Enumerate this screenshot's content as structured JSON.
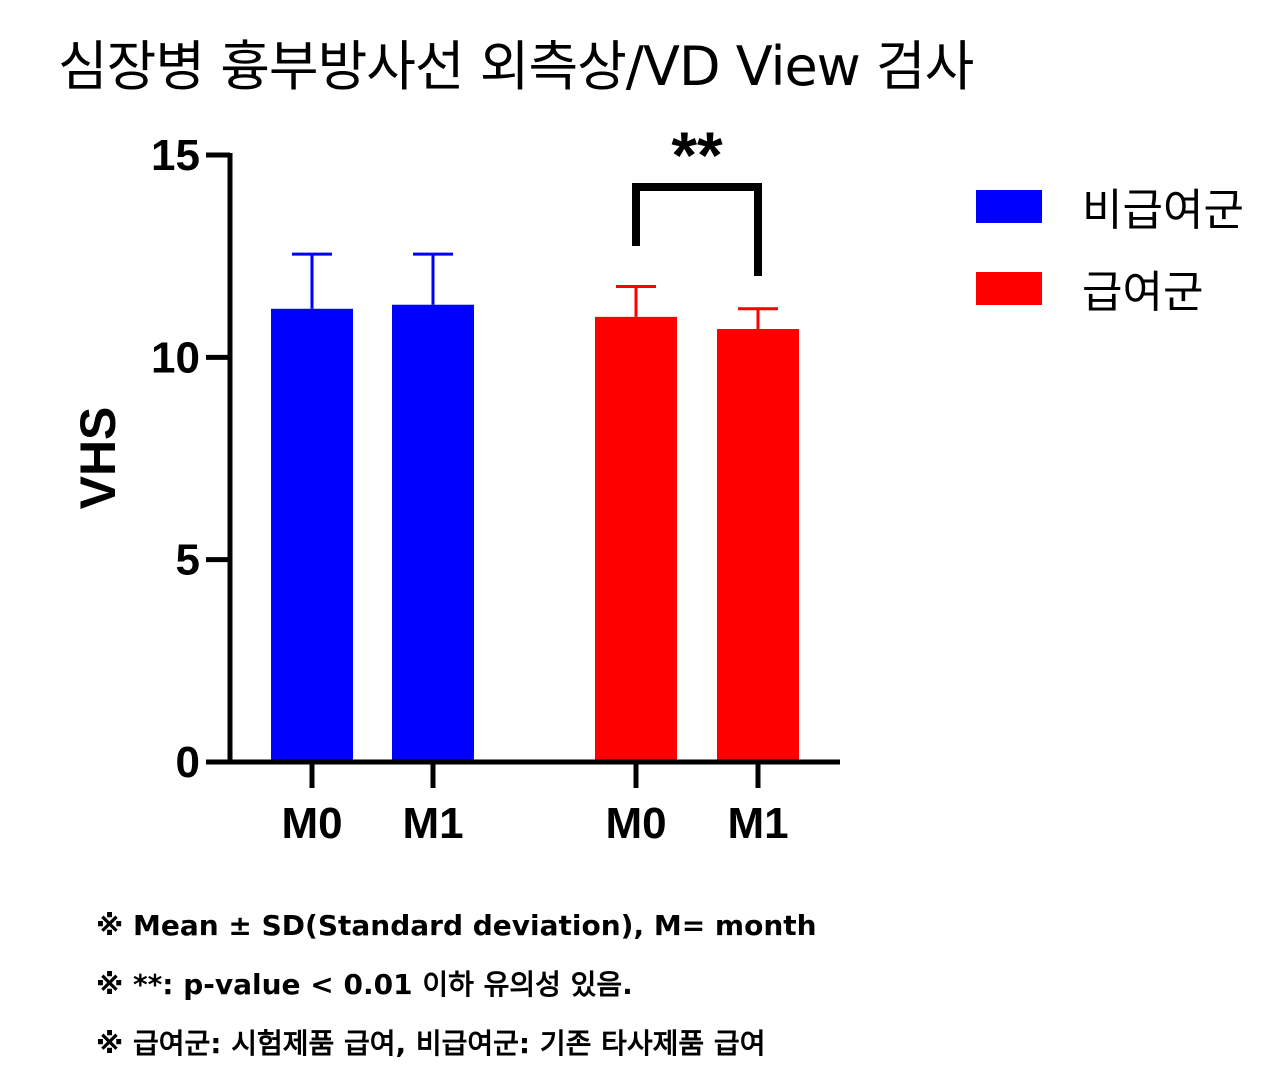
{
  "title": "심장병 흉부방사선 외측상/VD View 검사",
  "chart_data": {
    "type": "bar",
    "ylabel": "VHS",
    "ylim": [
      0,
      15
    ],
    "yticks": [
      0,
      5,
      10,
      15
    ],
    "categories": [
      "M0",
      "M1"
    ],
    "series": [
      {
        "name": "비급여군",
        "color": "#0000ff",
        "values": [
          11.2,
          11.3
        ],
        "sd": [
          1.35,
          1.25
        ]
      },
      {
        "name": "급여군",
        "color": "#ff0000",
        "values": [
          11.0,
          10.7
        ],
        "sd": [
          0.75,
          0.5
        ]
      }
    ],
    "significance": {
      "label": "**",
      "series_index": 1
    },
    "legend_position": "top-right"
  },
  "notes": [
    "※ Mean ± SD(Standard deviation), M= month",
    "※ **: p-value < 0.01 이하 유의성 있음.",
    "※ 급여군: 시험제품 급여, 비급여군: 기존 타사제품 급여"
  ]
}
